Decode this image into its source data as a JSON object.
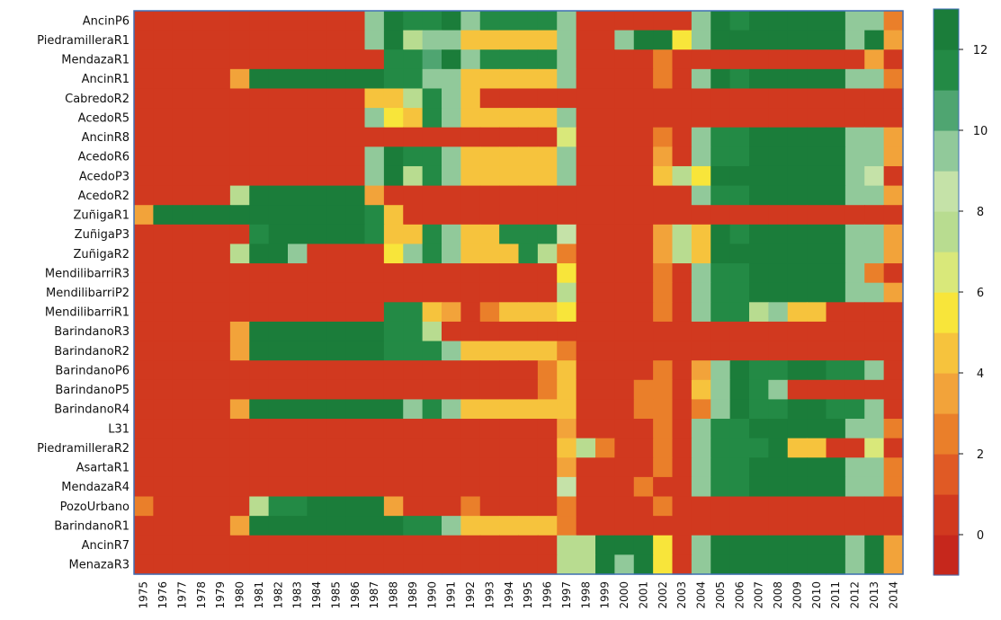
{
  "chart_data": {
    "type": "heatmap",
    "title": "",
    "xlabel": "",
    "ylabel": "",
    "x": [
      "1975",
      "1976",
      "1977",
      "1978",
      "1979",
      "1980",
      "1981",
      "1982",
      "1983",
      "1984",
      "1985",
      "1986",
      "1987",
      "1988",
      "1989",
      "1990",
      "1991",
      "1992",
      "1993",
      "1994",
      "1995",
      "1996",
      "1997",
      "1998",
      "1999",
      "2000",
      "2001",
      "2002",
      "2003",
      "2004",
      "2005",
      "2006",
      "2007",
      "2008",
      "2009",
      "2010",
      "2011",
      "2012",
      "2013",
      "2014"
    ],
    "y": [
      "AncinP6",
      "PiedramilleraR1",
      "MendazaR1",
      "AncinR1",
      "CabredoR2",
      "AcedoR5",
      "AncinR8",
      "AcedoR6",
      "AcedoP3",
      "AcedoR2",
      "ZuñigaR1",
      "ZuñigaP3",
      "ZuñigaR2",
      "MendilibarriR3",
      "MendilibarriP2",
      "MendilibarriR1",
      "BarindanoR3",
      "BarindanoR2",
      "BarindanoP6",
      "BarindanoP5",
      "BarindanoR4",
      "L31",
      "PiedramilleraR2",
      "AsartaR1",
      "MendazaR4",
      "PozoUrbano",
      "BarindanoR1",
      "AncinR7",
      "MenazaR3"
    ],
    "colorbar": {
      "min": -1,
      "max": 13,
      "ticks": [
        "0",
        "2",
        "4",
        "6",
        "8",
        "10",
        "12"
      ],
      "tick_values": [
        0,
        2,
        4,
        6,
        8,
        10,
        12
      ],
      "colors": [
        "#c6271c",
        "#d1391f",
        "#e05a25",
        "#ea7f2a",
        "#f2a33a",
        "#f6c33d",
        "#f8e53a",
        "#d9e87a",
        "#b8dc90",
        "#c5e2a8",
        "#91c99a",
        "#4fa571",
        "#238a45",
        "#1b7d3a"
      ]
    },
    "values": [
      [
        0,
        0,
        0,
        0,
        0,
        0,
        0,
        0,
        0,
        0,
        0,
        0,
        9,
        12,
        11,
        11,
        12,
        9,
        11,
        11,
        11,
        11,
        9,
        0,
        0,
        0,
        0,
        0,
        0,
        9,
        12,
        11,
        12,
        12,
        12,
        12,
        12,
        9,
        9,
        2
      ],
      [
        0,
        0,
        0,
        0,
        0,
        0,
        0,
        0,
        0,
        0,
        0,
        0,
        9,
        12,
        7,
        9,
        9,
        4,
        4,
        4,
        4,
        4,
        9,
        0,
        0,
        9,
        12,
        12,
        5,
        9,
        12,
        12,
        12,
        12,
        12,
        12,
        12,
        9,
        12,
        3
      ],
      [
        0,
        0,
        0,
        0,
        0,
        0,
        0,
        0,
        0,
        0,
        0,
        0,
        0,
        11,
        11,
        10,
        12,
        9,
        11,
        11,
        11,
        11,
        9,
        0,
        0,
        0,
        0,
        2,
        0,
        0,
        0,
        0,
        0,
        0,
        0,
        0,
        0,
        0,
        3,
        0
      ],
      [
        0,
        0,
        0,
        0,
        0,
        3,
        12,
        12,
        12,
        12,
        12,
        12,
        12,
        11,
        11,
        9,
        9,
        4,
        4,
        4,
        4,
        4,
        9,
        0,
        0,
        0,
        0,
        2,
        0,
        9,
        12,
        11,
        12,
        12,
        12,
        12,
        12,
        9,
        9,
        2
      ],
      [
        0,
        0,
        0,
        0,
        0,
        0,
        0,
        0,
        0,
        0,
        0,
        0,
        4,
        4,
        7,
        11,
        9,
        4,
        0,
        0,
        0,
        0,
        0,
        0,
        0,
        0,
        0,
        0,
        0,
        0,
        0,
        0,
        0,
        0,
        0,
        0,
        0,
        0,
        0,
        0
      ],
      [
        0,
        0,
        0,
        0,
        0,
        0,
        0,
        0,
        0,
        0,
        0,
        0,
        9,
        5,
        4,
        11,
        9,
        4,
        4,
        4,
        4,
        4,
        9,
        0,
        0,
        0,
        0,
        0,
        0,
        0,
        0,
        0,
        0,
        0,
        0,
        0,
        0,
        0,
        0,
        0
      ],
      [
        0,
        0,
        0,
        0,
        0,
        0,
        0,
        0,
        0,
        0,
        0,
        0,
        0,
        0,
        0,
        0,
        0,
        0,
        0,
        0,
        0,
        0,
        6,
        0,
        0,
        0,
        0,
        2,
        0,
        9,
        11,
        11,
        12,
        12,
        12,
        12,
        12,
        9,
        9,
        3
      ],
      [
        0,
        0,
        0,
        0,
        0,
        0,
        0,
        0,
        0,
        0,
        0,
        0,
        9,
        12,
        11,
        11,
        9,
        4,
        4,
        4,
        4,
        4,
        9,
        0,
        0,
        0,
        0,
        3,
        0,
        9,
        11,
        11,
        12,
        12,
        12,
        12,
        12,
        9,
        9,
        3
      ],
      [
        0,
        0,
        0,
        0,
        0,
        0,
        0,
        0,
        0,
        0,
        0,
        0,
        9,
        12,
        7,
        11,
        9,
        4,
        4,
        4,
        4,
        4,
        9,
        0,
        0,
        0,
        0,
        4,
        7,
        5,
        12,
        12,
        12,
        12,
        12,
        12,
        12,
        9,
        8,
        0
      ],
      [
        0,
        0,
        0,
        0,
        0,
        7,
        12,
        12,
        12,
        12,
        12,
        12,
        3,
        0,
        0,
        0,
        0,
        0,
        0,
        0,
        0,
        0,
        0,
        0,
        0,
        0,
        0,
        0,
        0,
        9,
        11,
        11,
        12,
        12,
        12,
        12,
        12,
        9,
        9,
        3
      ],
      [
        3,
        12,
        12,
        12,
        12,
        12,
        12,
        12,
        12,
        12,
        12,
        12,
        11,
        4,
        0,
        0,
        0,
        0,
        0,
        0,
        0,
        0,
        0,
        0,
        0,
        0,
        0,
        0,
        0,
        0,
        0,
        0,
        0,
        0,
        0,
        0,
        0,
        0,
        0,
        0
      ],
      [
        0,
        0,
        0,
        0,
        0,
        0,
        11,
        12,
        12,
        12,
        12,
        12,
        11,
        4,
        4,
        11,
        9,
        4,
        4,
        11,
        11,
        11,
        8,
        0,
        0,
        0,
        0,
        3,
        7,
        4,
        12,
        11,
        12,
        12,
        12,
        12,
        12,
        9,
        9,
        3
      ],
      [
        0,
        0,
        0,
        0,
        0,
        7,
        12,
        12,
        9,
        0,
        0,
        0,
        0,
        5,
        9,
        11,
        9,
        4,
        4,
        4,
        11,
        7,
        2,
        0,
        0,
        0,
        0,
        3,
        7,
        4,
        12,
        12,
        12,
        12,
        12,
        12,
        12,
        9,
        9,
        3
      ],
      [
        0,
        0,
        0,
        0,
        0,
        0,
        0,
        0,
        0,
        0,
        0,
        0,
        0,
        0,
        0,
        0,
        0,
        0,
        0,
        0,
        0,
        0,
        5,
        0,
        0,
        0,
        0,
        2,
        0,
        9,
        11,
        11,
        12,
        12,
        12,
        12,
        12,
        9,
        2,
        0
      ],
      [
        0,
        0,
        0,
        0,
        0,
        0,
        0,
        0,
        0,
        0,
        0,
        0,
        0,
        0,
        0,
        0,
        0,
        0,
        0,
        0,
        0,
        0,
        7,
        0,
        0,
        0,
        0,
        2,
        0,
        9,
        11,
        11,
        12,
        12,
        12,
        12,
        12,
        9,
        9,
        3
      ],
      [
        0,
        0,
        0,
        0,
        0,
        0,
        0,
        0,
        0,
        0,
        0,
        0,
        0,
        11,
        11,
        4,
        3,
        0,
        2,
        4,
        4,
        4,
        5,
        0,
        0,
        0,
        0,
        2,
        0,
        9,
        11,
        11,
        7,
        9,
        4,
        4,
        0,
        0,
        0,
        0
      ],
      [
        0,
        0,
        0,
        0,
        0,
        3,
        12,
        12,
        12,
        12,
        12,
        12,
        12,
        11,
        11,
        7,
        0,
        0,
        0,
        0,
        0,
        0,
        0,
        0,
        0,
        0,
        0,
        0,
        0,
        0,
        0,
        0,
        0,
        0,
        0,
        0,
        0,
        0,
        0,
        0
      ],
      [
        0,
        0,
        0,
        0,
        0,
        3,
        12,
        12,
        12,
        12,
        12,
        12,
        12,
        11,
        11,
        11,
        9,
        4,
        4,
        4,
        4,
        4,
        2,
        0,
        0,
        0,
        0,
        0,
        0,
        0,
        0,
        0,
        0,
        0,
        0,
        0,
        0,
        0,
        0,
        0
      ],
      [
        0,
        0,
        0,
        0,
        0,
        0,
        0,
        0,
        0,
        0,
        0,
        0,
        0,
        0,
        0,
        0,
        0,
        0,
        0,
        0,
        0,
        2,
        4,
        0,
        0,
        0,
        0,
        2,
        0,
        3,
        9,
        12,
        11,
        11,
        12,
        12,
        11,
        11,
        9,
        0
      ],
      [
        0,
        0,
        0,
        0,
        0,
        0,
        0,
        0,
        0,
        0,
        0,
        0,
        0,
        0,
        0,
        0,
        0,
        0,
        0,
        0,
        0,
        2,
        4,
        0,
        0,
        0,
        2,
        2,
        0,
        4,
        9,
        12,
        11,
        9,
        0,
        0,
        0,
        0,
        0,
        0
      ],
      [
        0,
        0,
        0,
        0,
        0,
        3,
        12,
        12,
        12,
        12,
        12,
        12,
        12,
        12,
        9,
        11,
        9,
        4,
        4,
        4,
        4,
        4,
        4,
        0,
        0,
        0,
        2,
        2,
        0,
        2,
        9,
        12,
        11,
        11,
        12,
        12,
        11,
        11,
        9,
        0
      ],
      [
        0,
        0,
        0,
        0,
        0,
        0,
        0,
        0,
        0,
        0,
        0,
        0,
        0,
        0,
        0,
        0,
        0,
        0,
        0,
        0,
        0,
        0,
        3,
        0,
        0,
        0,
        0,
        2,
        0,
        9,
        11,
        11,
        12,
        12,
        12,
        12,
        12,
        9,
        9,
        2
      ],
      [
        0,
        0,
        0,
        0,
        0,
        0,
        0,
        0,
        0,
        0,
        0,
        0,
        0,
        0,
        0,
        0,
        0,
        0,
        0,
        0,
        0,
        0,
        4,
        7,
        2,
        0,
        0,
        2,
        0,
        9,
        11,
        11,
        11,
        12,
        4,
        4,
        0,
        0,
        6,
        0
      ],
      [
        0,
        0,
        0,
        0,
        0,
        0,
        0,
        0,
        0,
        0,
        0,
        0,
        0,
        0,
        0,
        0,
        0,
        0,
        0,
        0,
        0,
        0,
        3,
        0,
        0,
        0,
        0,
        2,
        0,
        9,
        11,
        11,
        12,
        12,
        12,
        12,
        12,
        9,
        9,
        2
      ],
      [
        0,
        0,
        0,
        0,
        0,
        0,
        0,
        0,
        0,
        0,
        0,
        0,
        0,
        0,
        0,
        0,
        0,
        0,
        0,
        0,
        0,
        0,
        8,
        0,
        0,
        0,
        2,
        0,
        0,
        9,
        11,
        11,
        12,
        12,
        12,
        12,
        12,
        9,
        9,
        2
      ],
      [
        2,
        0,
        0,
        0,
        0,
        0,
        7,
        11,
        11,
        12,
        12,
        12,
        12,
        3,
        0,
        0,
        0,
        2,
        0,
        0,
        0,
        0,
        2,
        0,
        0,
        0,
        0,
        2,
        0,
        0,
        0,
        0,
        0,
        0,
        0,
        0,
        0,
        0,
        0,
        0
      ],
      [
        0,
        0,
        0,
        0,
        0,
        3,
        12,
        12,
        12,
        12,
        12,
        12,
        12,
        12,
        11,
        11,
        9,
        4,
        4,
        4,
        4,
        4,
        2,
        0,
        0,
        0,
        0,
        0,
        0,
        0,
        0,
        0,
        0,
        0,
        0,
        0,
        0,
        0,
        0,
        0
      ],
      [
        0,
        0,
        0,
        0,
        0,
        0,
        0,
        0,
        0,
        0,
        0,
        0,
        0,
        0,
        0,
        0,
        0,
        0,
        0,
        0,
        0,
        0,
        7,
        7,
        12,
        12,
        12,
        5,
        0,
        9,
        12,
        12,
        12,
        12,
        12,
        12,
        12,
        9,
        12,
        3
      ],
      [
        0,
        0,
        0,
        0,
        0,
        0,
        0,
        0,
        0,
        0,
        0,
        0,
        0,
        0,
        0,
        0,
        0,
        0,
        0,
        0,
        0,
        0,
        7,
        7,
        12,
        9,
        12,
        5,
        0,
        9,
        12,
        12,
        12,
        12,
        12,
        12,
        12,
        9,
        12,
        3
      ]
    ]
  }
}
